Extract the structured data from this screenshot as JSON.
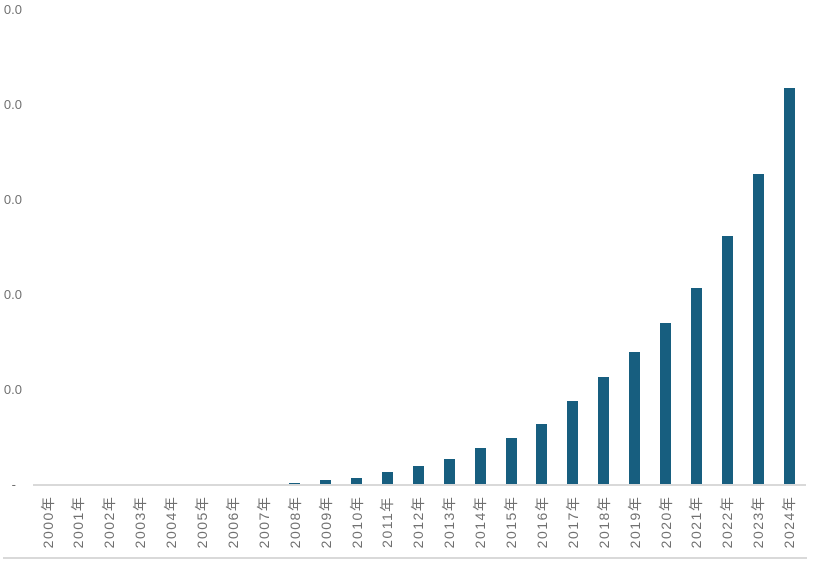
{
  "chart_data": {
    "type": "bar",
    "title": "",
    "xlabel": "",
    "ylabel": "",
    "categories": [
      "2000年",
      "2001年",
      "2002年",
      "2003年",
      "2004年",
      "2005年",
      "2006年",
      "2007年",
      "2008年",
      "2009年",
      "2010年",
      "2011年",
      "2012年",
      "2013年",
      "2014年",
      "2015年",
      "2016年",
      "2017年",
      "2018年",
      "2019年",
      "2020年",
      "2021年",
      "2022年",
      "2023年",
      "2024年"
    ],
    "values": [
      0,
      0,
      0,
      0,
      0,
      0,
      0.005,
      0.01,
      0.02,
      0.05,
      0.075,
      0.14,
      0.2,
      0.275,
      0.385,
      0.5,
      0.64,
      0.885,
      1.135,
      1.4,
      1.71,
      2.07,
      2.62,
      3.27,
      4.18
    ],
    "values_unit": "y-axis gridline steps (numeric tick labels are cropped off at the left edge of the screenshot)",
    "ylim": [
      0,
      5
    ],
    "y_tick_labels_top_to_bottom": [
      "0.0",
      "0.0",
      "0.0",
      "0.0",
      "0.0",
      "-"
    ],
    "grid": "off",
    "legend": null,
    "colors": {
      "bar": "#175E7F",
      "axis_line": "#D9D9D9",
      "chart_border": "#D9D9D9",
      "tick_label_text": "#707070"
    }
  }
}
